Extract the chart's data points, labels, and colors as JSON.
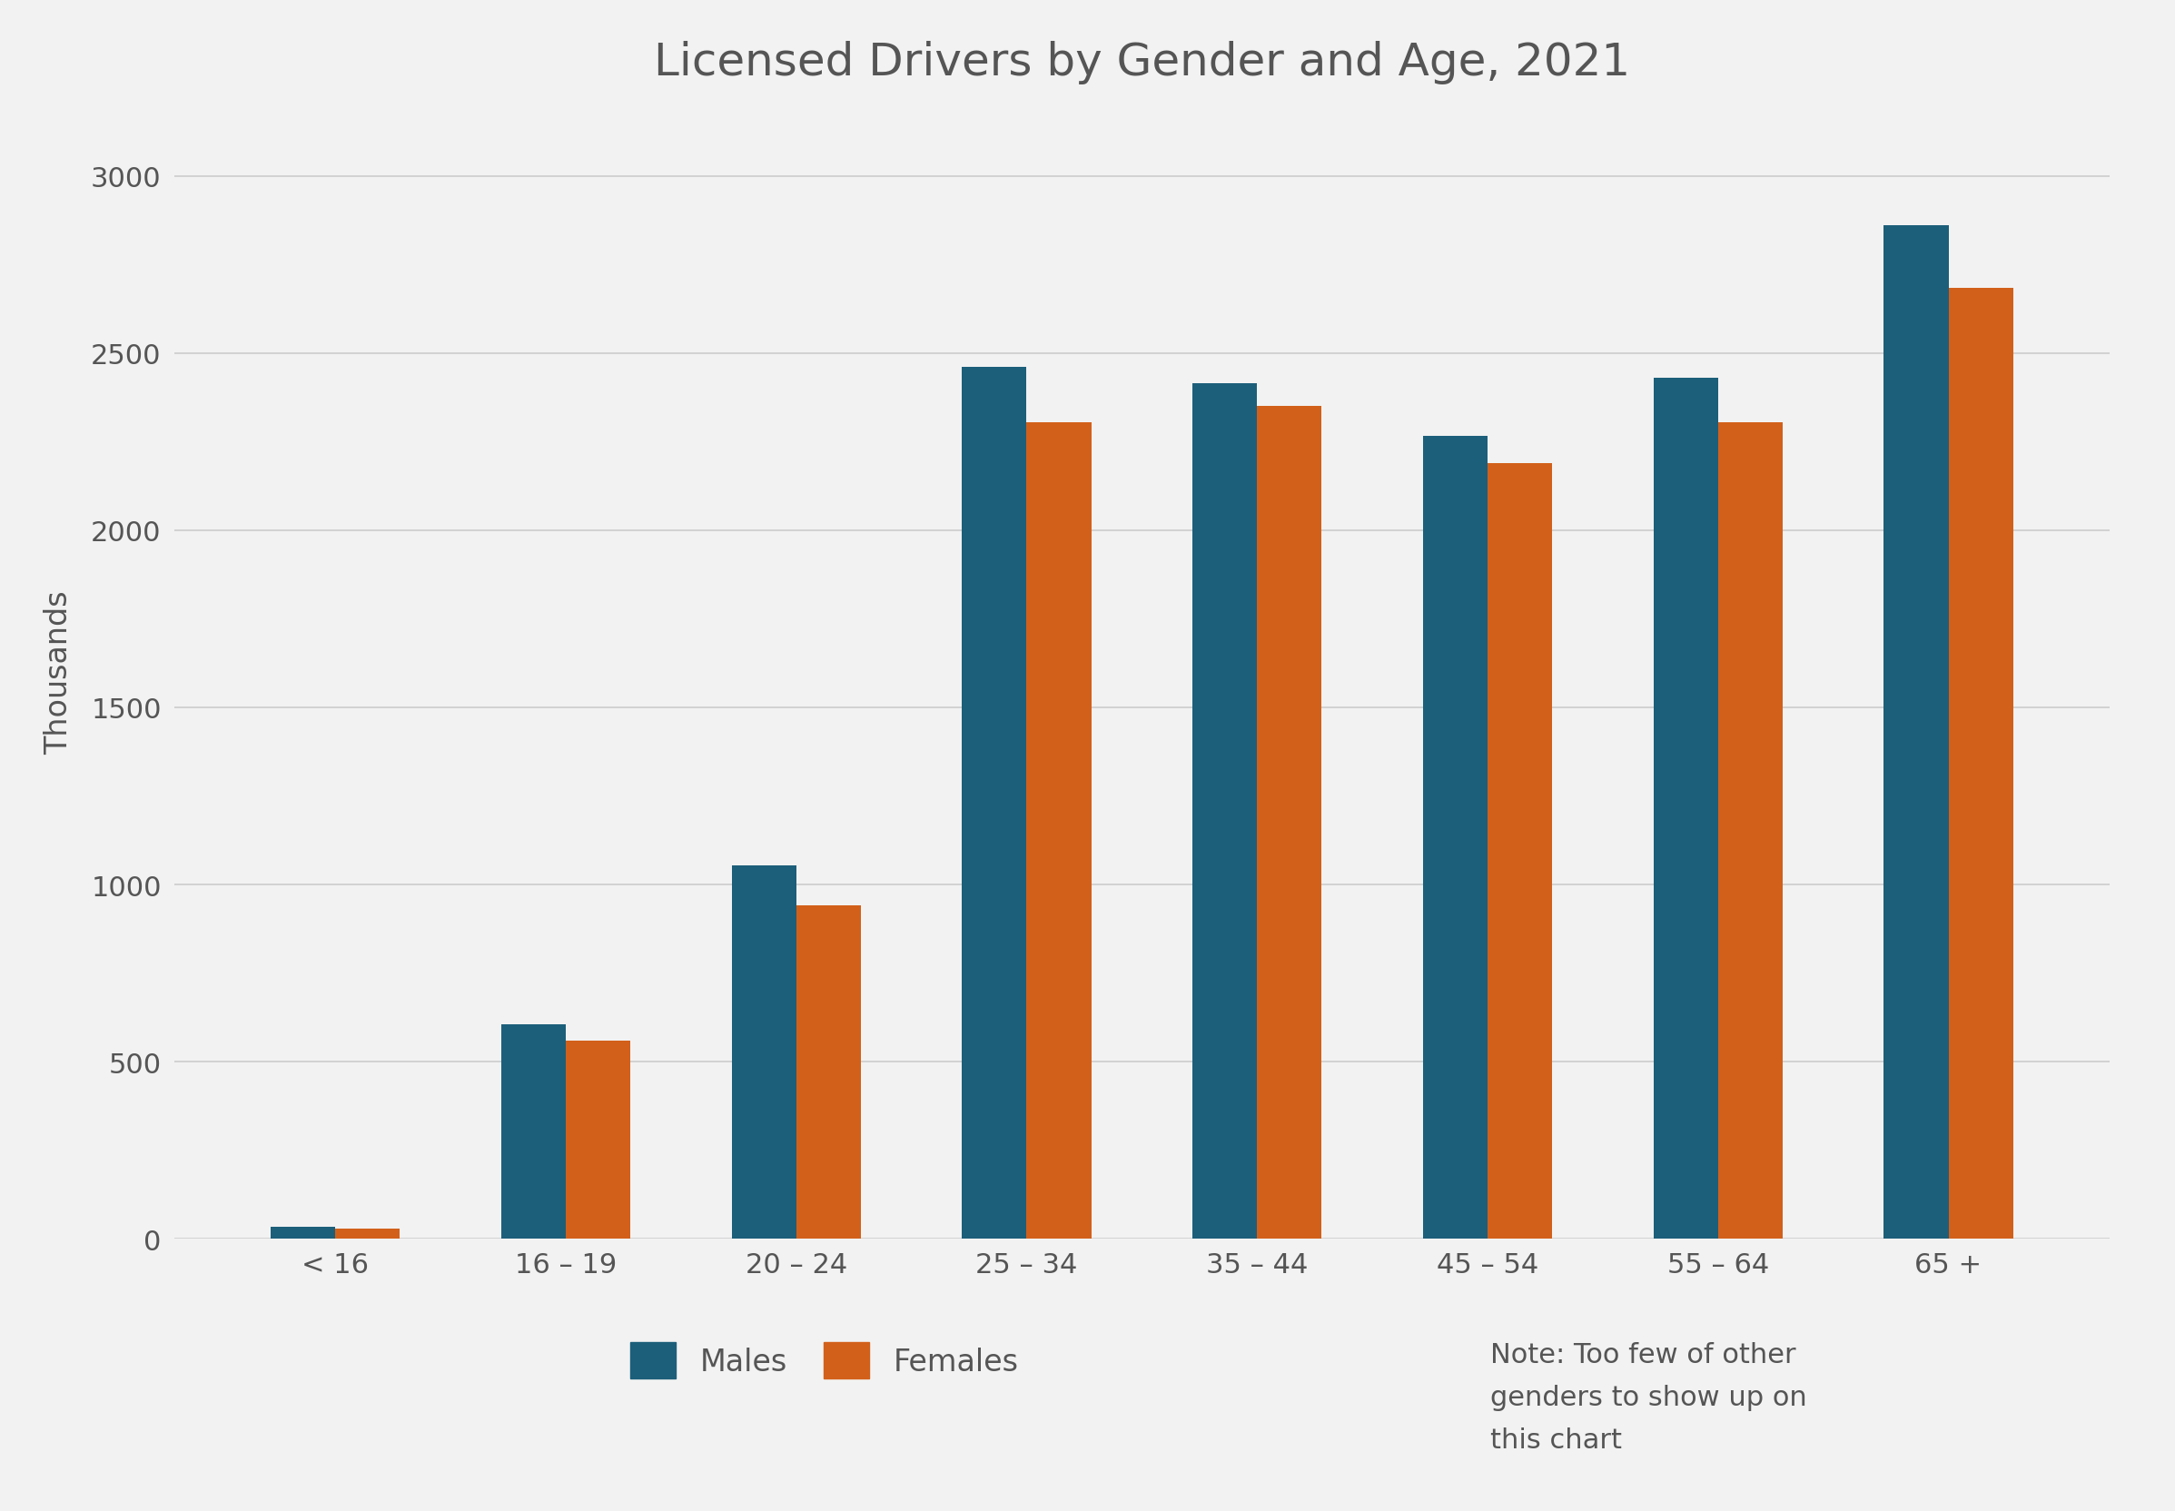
{
  "title": "Licensed Drivers by Gender and Age, 2021",
  "categories": [
    "< 16",
    "16 – 19",
    "20 – 24",
    "25 – 34",
    "35 – 44",
    "45 – 54",
    "55 – 64",
    "65 +"
  ],
  "males": [
    35,
    605,
    1055,
    2460,
    2415,
    2265,
    2430,
    2860
  ],
  "females": [
    30,
    560,
    940,
    2305,
    2350,
    2190,
    2305,
    2685
  ],
  "male_color": "#1c5f7a",
  "female_color": "#d2601a",
  "ylabel": "Thousands",
  "ylim": [
    0,
    3200
  ],
  "yticks": [
    0,
    500,
    1000,
    1500,
    2000,
    2500,
    3000
  ],
  "background_color": "#f2f2f2",
  "title_fontsize": 36,
  "axis_label_fontsize": 24,
  "tick_fontsize": 22,
  "legend_fontsize": 24,
  "note_text": "Note: Too few of other\ngenders to show up on\nthis chart",
  "note_fontsize": 22,
  "grid_color": "#cccccc",
  "text_color": "#555555",
  "bar_width": 0.28
}
